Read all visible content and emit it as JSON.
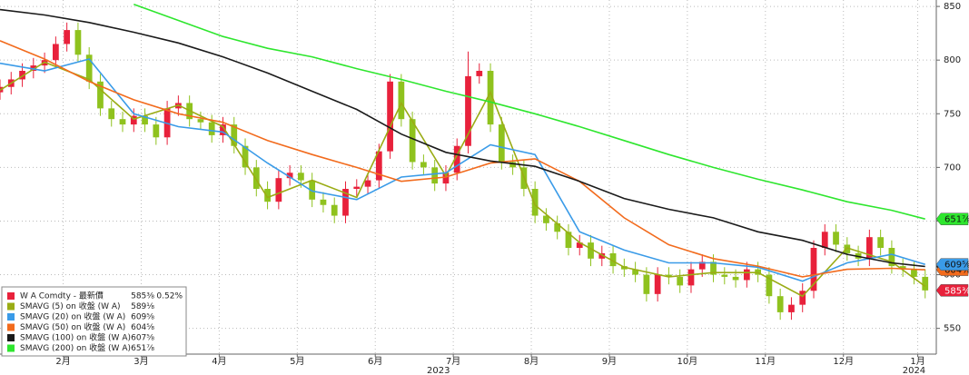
{
  "chart_data": {
    "type": "candlestick",
    "up_color": "#e8213b",
    "down_color": "#8fc21e",
    "grid": true,
    "xlim": [
      0,
      252
    ],
    "ylim": [
      526,
      856
    ],
    "yticks": [
      550,
      600,
      650,
      700,
      750,
      800,
      850
    ],
    "xticks": [
      {
        "value": 17,
        "label": "2月"
      },
      {
        "value": 38,
        "label": "3月"
      },
      {
        "value": 59,
        "label": "4月"
      },
      {
        "value": 80,
        "label": "5月"
      },
      {
        "value": 101,
        "label": "6月"
      },
      {
        "value": 122,
        "label": "7月"
      },
      {
        "value": 143,
        "label": "8月"
      },
      {
        "value": 164,
        "label": "9月"
      },
      {
        "value": 185,
        "label": "10月"
      },
      {
        "value": 206,
        "label": "11月"
      },
      {
        "value": 227,
        "label": "12月"
      },
      {
        "value": 247,
        "label": "1月"
      }
    ],
    "year_labels": [
      {
        "value": 118,
        "label": "2023"
      },
      {
        "value": 246,
        "label": "2024"
      }
    ],
    "name": "W A Comdty - 最新價",
    "last_value": {
      "value": 585.375,
      "label": "585⅜"
    },
    "change": {
      "value": 0.52,
      "label": "0.52%"
    },
    "x": [
      0,
      3,
      6,
      9,
      12,
      15,
      18,
      21,
      24,
      27,
      30,
      33,
      36,
      39,
      42,
      45,
      48,
      51,
      54,
      57,
      60,
      63,
      66,
      69,
      72,
      75,
      78,
      81,
      84,
      87,
      90,
      93,
      96,
      99,
      102,
      105,
      108,
      111,
      114,
      117,
      120,
      123,
      126,
      129,
      132,
      135,
      138,
      141,
      144,
      147,
      150,
      153,
      156,
      159,
      162,
      165,
      168,
      171,
      174,
      177,
      180,
      183,
      186,
      189,
      192,
      195,
      198,
      201,
      204,
      207,
      210,
      213,
      216,
      219,
      222,
      225,
      228,
      231,
      234,
      237,
      240,
      243,
      246,
      249
    ],
    "open": [
      770,
      775,
      782,
      790,
      795,
      800,
      815,
      828,
      805,
      780,
      755,
      745,
      740,
      748,
      740,
      728,
      755,
      760,
      745,
      742,
      730,
      740,
      720,
      700,
      680,
      668,
      690,
      695,
      688,
      670,
      665,
      655,
      680,
      682,
      688,
      715,
      780,
      745,
      705,
      700,
      685,
      695,
      720,
      785,
      790,
      740,
      705,
      700,
      680,
      655,
      648,
      640,
      625,
      630,
      615,
      620,
      608,
      605,
      600,
      582,
      600,
      598,
      590,
      605,
      612,
      600,
      598,
      595,
      605,
      600,
      580,
      565,
      572,
      585,
      625,
      640,
      628,
      620,
      615,
      635,
      625,
      608,
      605,
      598
    ],
    "high": [
      782,
      789,
      797,
      802,
      807,
      822,
      835,
      835,
      812,
      787,
      762,
      752,
      755,
      755,
      747,
      762,
      767,
      767,
      752,
      749,
      747,
      747,
      727,
      707,
      687,
      697,
      702,
      702,
      695,
      677,
      672,
      687,
      689,
      695,
      722,
      787,
      787,
      752,
      712,
      707,
      702,
      727,
      808,
      797,
      797,
      747,
      712,
      707,
      687,
      662,
      655,
      647,
      637,
      637,
      627,
      627,
      615,
      612,
      607,
      607,
      607,
      605,
      612,
      619,
      619,
      607,
      605,
      612,
      612,
      607,
      587,
      579,
      592,
      632,
      647,
      647,
      635,
      627,
      642,
      642,
      632,
      615,
      612,
      605
    ],
    "low": [
      763,
      768,
      775,
      783,
      788,
      793,
      808,
      798,
      773,
      748,
      738,
      733,
      733,
      733,
      721,
      721,
      748,
      738,
      735,
      723,
      723,
      713,
      693,
      673,
      661,
      661,
      683,
      681,
      663,
      658,
      648,
      648,
      673,
      675,
      681,
      708,
      738,
      698,
      693,
      678,
      678,
      688,
      713,
      778,
      733,
      698,
      693,
      673,
      648,
      641,
      633,
      618,
      618,
      608,
      608,
      601,
      598,
      593,
      575,
      575,
      591,
      583,
      583,
      598,
      593,
      591,
      588,
      588,
      593,
      573,
      558,
      558,
      565,
      578,
      618,
      621,
      613,
      608,
      608,
      618,
      601,
      598,
      591,
      578
    ],
    "close": [
      775,
      782,
      790,
      795,
      800,
      815,
      828,
      805,
      780,
      755,
      745,
      740,
      748,
      740,
      728,
      755,
      760,
      745,
      742,
      730,
      740,
      720,
      700,
      680,
      668,
      690,
      695,
      688,
      670,
      665,
      655,
      680,
      682,
      688,
      715,
      780,
      745,
      705,
      700,
      685,
      695,
      720,
      785,
      790,
      740,
      705,
      700,
      680,
      655,
      648,
      640,
      625,
      630,
      615,
      620,
      608,
      605,
      600,
      582,
      600,
      598,
      590,
      605,
      612,
      600,
      598,
      595,
      605,
      600,
      580,
      565,
      572,
      585,
      625,
      640,
      628,
      620,
      615,
      635,
      625,
      608,
      605,
      598,
      585.375
    ],
    "overlay_x": [
      0,
      12,
      24,
      36,
      48,
      60,
      72,
      84,
      96,
      108,
      120,
      132,
      144,
      156,
      168,
      180,
      192,
      204,
      216,
      228,
      240,
      249
    ],
    "overlays": [
      {
        "name": "SMAVG (5)  on 收盤 (W A)",
        "color": "#9aac14",
        "last_value": {
          "value": 589.125,
          "label": "589⅛"
        },
        "values": [
          772,
          798,
          782,
          745,
          758,
          738,
          672,
          688,
          672,
          760,
          692,
          770,
          665,
          630,
          607,
          598,
          602,
          602,
          580,
          625,
          612,
          589.125
        ]
      },
      {
        "name": "SMAVG (20)  on 收盤 (W A)",
        "color": "#3a9be8",
        "last_value": {
          "value": 609.625,
          "label": "609⅝"
        },
        "values": [
          797,
          790,
          801,
          750,
          738,
          733,
          704,
          678,
          670,
          691,
          695,
          721,
          712,
          640,
          623,
          611,
          611,
          607,
          594,
          611,
          619,
          609.625
        ]
      },
      {
        "name": "SMAVG (50)  on 收盤 (W A)",
        "color": "#f26b1d",
        "last_value": {
          "value": 604.625,
          "label": "604⅝"
        },
        "values": [
          818,
          801,
          780,
          763,
          750,
          742,
          725,
          712,
          700,
          687,
          691,
          704,
          708,
          687,
          653,
          628,
          615,
          608,
          598,
          605,
          606,
          604.625
        ]
      },
      {
        "name": "SMAVG (100)  on 收盤 (W A)",
        "color": "#1a1a1a",
        "last_value": {
          "value": 607.625,
          "label": "607⅝"
        },
        "values": [
          847,
          842,
          835,
          826,
          816,
          803,
          788,
          771,
          754,
          731,
          714,
          706,
          701,
          687,
          671,
          661,
          653,
          640,
          632,
          619,
          611,
          607.625
        ]
      },
      {
        "name": "SMAVG (200)  on 收盤 (W A)",
        "color": "#2ee62e",
        "last_value": {
          "value": 651.875,
          "label": "651⅞"
        },
        "values": [
          null,
          null,
          null,
          852,
          837,
          822,
          811,
          803,
          792,
          782,
          771,
          761,
          750,
          738,
          725,
          712,
          700,
          689,
          679,
          668,
          660,
          651.875
        ]
      }
    ]
  }
}
